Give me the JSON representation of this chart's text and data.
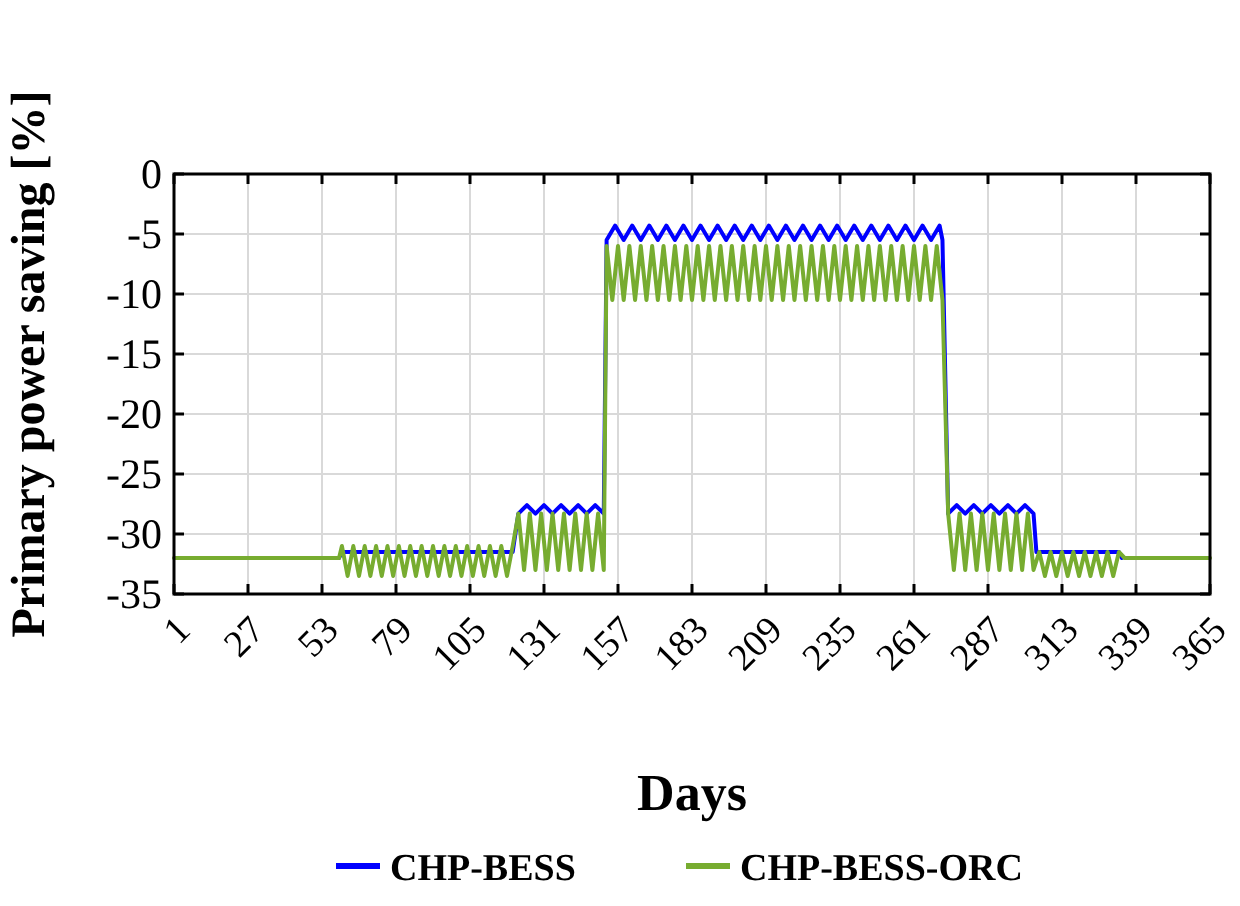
{
  "chart_data": {
    "type": "line",
    "xlabel": "Days",
    "ylabel": "Primary power saving [%]",
    "xlim": [
      1,
      365
    ],
    "xticks": [
      1,
      27,
      53,
      79,
      105,
      131,
      157,
      183,
      209,
      235,
      261,
      287,
      313,
      339,
      365
    ],
    "ylim": [
      -35,
      0
    ],
    "yticks": [
      0,
      -5,
      -10,
      -15,
      -20,
      -25,
      -30,
      -35
    ],
    "grid": true,
    "legend": "bottom",
    "marker": "none",
    "line_style": "solid",
    "series": [
      {
        "name": "CHP-BESS",
        "color": "#0000ff",
        "x": [
          59,
          60,
          120,
          122,
          125,
          128,
          131,
          134,
          137,
          140,
          143,
          146,
          149,
          152,
          153,
          156,
          159,
          162,
          165,
          168,
          171,
          174,
          177,
          180,
          183,
          186,
          189,
          192,
          195,
          198,
          201,
          204,
          207,
          210,
          213,
          216,
          219,
          222,
          225,
          228,
          231,
          234,
          237,
          240,
          243,
          246,
          249,
          252,
          255,
          258,
          261,
          264,
          267,
          270,
          271,
          273,
          276,
          279,
          282,
          285,
          288,
          291,
          294,
          297,
          300,
          303,
          304,
          333,
          334
        ],
        "values": [
          -32,
          -31.5,
          -31.5,
          -28.3,
          -27.6,
          -28.3,
          -27.6,
          -28.3,
          -27.6,
          -28.3,
          -27.6,
          -28.3,
          -27.6,
          -28.3,
          -5.5,
          -4.3,
          -5.5,
          -4.3,
          -5.5,
          -4.3,
          -5.5,
          -4.3,
          -5.5,
          -4.3,
          -5.5,
          -4.3,
          -5.5,
          -4.3,
          -5.5,
          -4.3,
          -5.5,
          -4.3,
          -5.5,
          -4.3,
          -5.5,
          -4.3,
          -5.5,
          -4.3,
          -5.5,
          -4.3,
          -5.5,
          -4.3,
          -5.5,
          -4.3,
          -5.5,
          -4.3,
          -5.5,
          -4.3,
          -5.5,
          -4.3,
          -5.5,
          -4.3,
          -5.5,
          -4.3,
          -5.5,
          -28.3,
          -27.6,
          -28.3,
          -27.6,
          -28.3,
          -27.6,
          -28.3,
          -27.6,
          -28.3,
          -27.6,
          -28.3,
          -31.5,
          -31.5,
          -32
        ]
      },
      {
        "name": "CHP-BESS-ORC",
        "color": "#77ac30",
        "x": [
          1,
          59,
          60,
          62,
          64,
          66,
          68,
          70,
          72,
          74,
          76,
          78,
          80,
          82,
          84,
          86,
          88,
          90,
          92,
          94,
          96,
          98,
          100,
          102,
          104,
          106,
          108,
          110,
          112,
          114,
          116,
          118,
          120,
          122,
          124,
          126,
          128,
          130,
          132,
          134,
          136,
          138,
          140,
          142,
          144,
          146,
          148,
          150,
          152,
          153,
          155,
          157,
          159,
          161,
          163,
          165,
          167,
          169,
          171,
          173,
          175,
          177,
          179,
          181,
          183,
          185,
          187,
          189,
          191,
          193,
          195,
          197,
          199,
          201,
          203,
          205,
          207,
          209,
          211,
          213,
          215,
          217,
          219,
          221,
          223,
          225,
          227,
          229,
          231,
          233,
          235,
          237,
          239,
          241,
          243,
          245,
          247,
          249,
          251,
          253,
          255,
          257,
          259,
          261,
          263,
          265,
          267,
          269,
          271,
          273,
          275,
          277,
          279,
          281,
          283,
          285,
          287,
          289,
          291,
          293,
          295,
          297,
          299,
          301,
          303,
          305,
          307,
          309,
          311,
          313,
          315,
          317,
          319,
          321,
          323,
          325,
          327,
          329,
          331,
          333,
          335,
          365
        ],
        "values": [
          -32,
          -32,
          -31,
          -33.5,
          -31,
          -33.5,
          -31,
          -33.5,
          -31,
          -33.5,
          -31,
          -33.5,
          -31,
          -33.5,
          -31,
          -33.5,
          -31,
          -33.5,
          -31,
          -33.5,
          -31,
          -33.5,
          -31,
          -33.5,
          -31,
          -33.5,
          -31,
          -33.5,
          -31,
          -33.5,
          -31,
          -33.5,
          -31,
          -28.3,
          -33,
          -28.3,
          -33,
          -28.3,
          -33,
          -28.3,
          -33,
          -28.3,
          -33,
          -28.3,
          -33,
          -28.3,
          -33,
          -28.3,
          -33,
          -6,
          -10.5,
          -6,
          -10.5,
          -6,
          -10.5,
          -6,
          -10.5,
          -6,
          -10.5,
          -6,
          -10.5,
          -6,
          -10.5,
          -6,
          -10.5,
          -6,
          -10.5,
          -6,
          -10.5,
          -6,
          -10.5,
          -6,
          -10.5,
          -6,
          -10.5,
          -6,
          -10.5,
          -6,
          -10.5,
          -6,
          -10.5,
          -6,
          -10.5,
          -6,
          -10.5,
          -6,
          -10.5,
          -6,
          -10.5,
          -6,
          -10.5,
          -6,
          -10.5,
          -6,
          -10.5,
          -6,
          -10.5,
          -6,
          -10.5,
          -6,
          -10.5,
          -6,
          -10.5,
          -6,
          -10.5,
          -6,
          -10.5,
          -6,
          -10.5,
          -28.3,
          -33,
          -28.3,
          -33,
          -28.3,
          -33,
          -28.3,
          -33,
          -28.3,
          -33,
          -28.3,
          -33,
          -28.3,
          -33,
          -28.3,
          -33,
          -31.5,
          -33.5,
          -31.5,
          -33.5,
          -31.5,
          -33.5,
          -31.5,
          -33.5,
          -31.5,
          -33.5,
          -31.5,
          -33.5,
          -31.5,
          -33.5,
          -31.5,
          -32,
          -32
        ]
      }
    ]
  }
}
